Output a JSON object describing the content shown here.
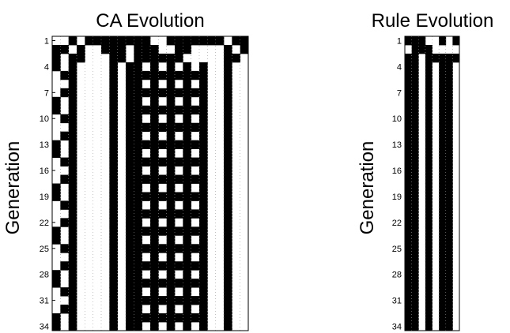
{
  "chart_data": [
    {
      "type": "heatmap",
      "title": "CA Evolution",
      "xlabel": "",
      "ylabel": "Generation",
      "yticks": [
        "1",
        "4",
        "7",
        "10",
        "13",
        "16",
        "19",
        "22",
        "25",
        "28",
        "31",
        "34"
      ],
      "grid": true,
      "colors": {
        "1": "#000000",
        "0": "#ffffff"
      },
      "rows": [
        [
          0,
          0,
          1,
          0,
          1,
          1,
          1,
          1,
          1,
          1,
          1,
          1,
          0,
          0,
          1,
          1,
          1,
          1,
          1,
          1,
          1,
          0,
          1,
          1
        ],
        [
          1,
          1,
          0,
          1,
          0,
          0,
          1,
          1,
          1,
          0,
          1,
          1,
          1,
          0,
          0,
          1,
          1,
          0,
          0,
          0,
          0,
          1,
          0,
          1
        ],
        [
          1,
          0,
          1,
          1,
          0,
          0,
          0,
          1,
          1,
          0,
          1,
          1,
          1,
          1,
          1,
          1,
          0,
          0,
          0,
          0,
          0,
          1,
          1,
          0
        ],
        [
          1,
          0,
          1,
          0,
          0,
          0,
          0,
          1,
          0,
          1,
          1,
          0,
          1,
          0,
          1,
          0,
          1,
          0,
          1,
          0,
          0,
          1,
          0,
          0
        ],
        [
          0,
          1,
          1,
          0,
          0,
          0,
          0,
          1,
          0,
          1,
          1,
          1,
          1,
          1,
          1,
          1,
          1,
          1,
          1,
          0,
          0,
          1,
          0,
          0
        ],
        [
          0,
          0,
          1,
          0,
          0,
          0,
          0,
          1,
          0,
          1,
          1,
          0,
          1,
          0,
          1,
          0,
          1,
          0,
          1,
          0,
          0,
          1,
          0,
          0
        ],
        [
          0,
          1,
          1,
          0,
          0,
          0,
          0,
          1,
          0,
          1,
          1,
          1,
          1,
          1,
          1,
          1,
          1,
          1,
          1,
          0,
          0,
          1,
          0,
          0
        ],
        [
          1,
          0,
          1,
          0,
          0,
          0,
          0,
          1,
          0,
          1,
          1,
          0,
          1,
          0,
          1,
          0,
          1,
          0,
          1,
          0,
          0,
          1,
          0,
          0
        ],
        [
          1,
          0,
          1,
          0,
          0,
          0,
          0,
          1,
          0,
          1,
          1,
          1,
          1,
          1,
          1,
          1,
          1,
          1,
          1,
          0,
          0,
          1,
          0,
          0
        ],
        [
          0,
          1,
          1,
          0,
          0,
          0,
          0,
          1,
          0,
          1,
          1,
          0,
          1,
          0,
          1,
          0,
          1,
          0,
          1,
          0,
          0,
          1,
          0,
          0
        ],
        [
          0,
          0,
          1,
          0,
          0,
          0,
          0,
          1,
          0,
          1,
          1,
          1,
          1,
          1,
          1,
          1,
          1,
          1,
          1,
          0,
          0,
          1,
          0,
          0
        ],
        [
          0,
          1,
          1,
          0,
          0,
          0,
          0,
          1,
          0,
          1,
          1,
          0,
          1,
          0,
          1,
          0,
          1,
          0,
          1,
          0,
          0,
          1,
          0,
          0
        ],
        [
          1,
          0,
          1,
          0,
          0,
          0,
          0,
          1,
          0,
          1,
          1,
          1,
          1,
          1,
          1,
          1,
          1,
          1,
          1,
          0,
          0,
          1,
          0,
          0
        ],
        [
          1,
          0,
          1,
          0,
          0,
          0,
          0,
          1,
          0,
          1,
          1,
          0,
          1,
          0,
          1,
          0,
          1,
          0,
          1,
          0,
          0,
          1,
          0,
          0
        ],
        [
          0,
          1,
          1,
          0,
          0,
          0,
          0,
          1,
          0,
          1,
          1,
          1,
          1,
          1,
          1,
          1,
          1,
          1,
          1,
          0,
          0,
          1,
          0,
          0
        ],
        [
          0,
          0,
          1,
          0,
          0,
          0,
          0,
          1,
          0,
          1,
          1,
          0,
          1,
          0,
          1,
          0,
          1,
          0,
          1,
          0,
          0,
          1,
          0,
          0
        ],
        [
          0,
          1,
          1,
          0,
          0,
          0,
          0,
          1,
          0,
          1,
          1,
          1,
          1,
          1,
          1,
          1,
          1,
          1,
          1,
          0,
          0,
          1,
          0,
          0
        ],
        [
          1,
          0,
          1,
          0,
          0,
          0,
          0,
          1,
          0,
          1,
          1,
          0,
          1,
          0,
          1,
          0,
          1,
          0,
          1,
          0,
          0,
          1,
          0,
          0
        ],
        [
          1,
          0,
          1,
          0,
          0,
          0,
          0,
          1,
          0,
          1,
          1,
          1,
          1,
          1,
          1,
          1,
          1,
          1,
          1,
          0,
          0,
          1,
          0,
          0
        ],
        [
          0,
          1,
          1,
          0,
          0,
          0,
          0,
          1,
          0,
          1,
          1,
          0,
          1,
          0,
          1,
          0,
          1,
          0,
          1,
          0,
          0,
          1,
          0,
          0
        ],
        [
          0,
          0,
          1,
          0,
          0,
          0,
          0,
          1,
          0,
          1,
          1,
          1,
          1,
          1,
          1,
          1,
          1,
          1,
          1,
          0,
          0,
          1,
          0,
          0
        ],
        [
          0,
          1,
          1,
          0,
          0,
          0,
          0,
          1,
          0,
          1,
          1,
          0,
          1,
          0,
          1,
          0,
          1,
          0,
          1,
          0,
          0,
          1,
          0,
          0
        ],
        [
          1,
          0,
          1,
          0,
          0,
          0,
          0,
          1,
          0,
          1,
          1,
          1,
          1,
          1,
          1,
          1,
          1,
          1,
          1,
          0,
          0,
          1,
          0,
          0
        ],
        [
          1,
          0,
          1,
          0,
          0,
          0,
          0,
          1,
          0,
          1,
          1,
          0,
          1,
          0,
          1,
          0,
          1,
          0,
          1,
          0,
          0,
          1,
          0,
          0
        ],
        [
          0,
          1,
          1,
          0,
          0,
          0,
          0,
          1,
          0,
          1,
          1,
          1,
          1,
          1,
          1,
          1,
          1,
          1,
          1,
          0,
          0,
          1,
          0,
          0
        ],
        [
          0,
          0,
          1,
          0,
          0,
          0,
          0,
          1,
          0,
          1,
          1,
          0,
          1,
          0,
          1,
          0,
          1,
          0,
          1,
          0,
          0,
          1,
          0,
          0
        ],
        [
          0,
          1,
          1,
          0,
          0,
          0,
          0,
          1,
          0,
          1,
          1,
          1,
          1,
          1,
          1,
          1,
          1,
          1,
          1,
          0,
          0,
          1,
          0,
          0
        ],
        [
          1,
          0,
          1,
          0,
          0,
          0,
          0,
          1,
          0,
          1,
          1,
          0,
          1,
          0,
          1,
          0,
          1,
          0,
          1,
          0,
          0,
          1,
          0,
          0
        ],
        [
          1,
          0,
          1,
          0,
          0,
          0,
          0,
          1,
          0,
          1,
          1,
          1,
          1,
          1,
          1,
          1,
          1,
          1,
          1,
          0,
          0,
          1,
          0,
          0
        ],
        [
          0,
          1,
          1,
          0,
          0,
          0,
          0,
          1,
          0,
          1,
          1,
          0,
          1,
          0,
          1,
          0,
          1,
          0,
          1,
          0,
          0,
          1,
          0,
          0
        ],
        [
          0,
          0,
          1,
          0,
          0,
          0,
          0,
          1,
          0,
          1,
          1,
          1,
          1,
          1,
          1,
          1,
          1,
          1,
          1,
          0,
          0,
          1,
          0,
          0
        ],
        [
          0,
          1,
          1,
          0,
          0,
          0,
          0,
          1,
          0,
          1,
          1,
          0,
          1,
          0,
          1,
          0,
          1,
          0,
          1,
          0,
          0,
          1,
          0,
          0
        ],
        [
          1,
          0,
          1,
          0,
          0,
          0,
          0,
          1,
          0,
          1,
          1,
          1,
          1,
          1,
          1,
          1,
          1,
          1,
          1,
          0,
          0,
          1,
          0,
          0
        ],
        [
          1,
          0,
          1,
          0,
          0,
          0,
          0,
          1,
          0,
          1,
          1,
          0,
          1,
          0,
          1,
          0,
          1,
          0,
          1,
          0,
          0,
          1,
          0,
          0
        ]
      ]
    },
    {
      "type": "heatmap",
      "title": "Rule Evolution",
      "xlabel": "",
      "ylabel": "Generation",
      "yticks": [
        "1",
        "4",
        "7",
        "10",
        "13",
        "16",
        "19",
        "22",
        "25",
        "28",
        "31",
        "34"
      ],
      "grid": true,
      "colors": {
        "1": "#000000",
        "0": "#ffffff"
      },
      "rows": [
        [
          1,
          1,
          1,
          0,
          0,
          1,
          0,
          1
        ],
        [
          0,
          1,
          1,
          1,
          0,
          0,
          0,
          0
        ],
        [
          1,
          1,
          0,
          1,
          1,
          1,
          1,
          1
        ],
        [
          1,
          1,
          0,
          1,
          0,
          1,
          1,
          0
        ],
        [
          1,
          1,
          0,
          1,
          0,
          1,
          1,
          0
        ],
        [
          1,
          1,
          0,
          1,
          0,
          1,
          1,
          0
        ],
        [
          1,
          1,
          0,
          1,
          0,
          1,
          1,
          0
        ],
        [
          1,
          1,
          0,
          1,
          0,
          1,
          1,
          0
        ],
        [
          1,
          1,
          0,
          1,
          0,
          1,
          1,
          0
        ],
        [
          1,
          1,
          0,
          1,
          0,
          1,
          1,
          0
        ],
        [
          1,
          1,
          0,
          1,
          0,
          1,
          1,
          0
        ],
        [
          1,
          1,
          0,
          1,
          0,
          1,
          1,
          0
        ],
        [
          1,
          1,
          0,
          1,
          0,
          1,
          1,
          0
        ],
        [
          1,
          1,
          0,
          1,
          0,
          1,
          1,
          0
        ],
        [
          1,
          1,
          0,
          1,
          0,
          1,
          1,
          0
        ],
        [
          1,
          1,
          0,
          1,
          0,
          1,
          1,
          0
        ],
        [
          1,
          1,
          0,
          1,
          0,
          1,
          1,
          0
        ],
        [
          1,
          1,
          0,
          1,
          0,
          1,
          1,
          0
        ],
        [
          1,
          1,
          0,
          1,
          0,
          1,
          1,
          0
        ],
        [
          1,
          1,
          0,
          1,
          0,
          1,
          1,
          0
        ],
        [
          1,
          1,
          0,
          1,
          0,
          1,
          1,
          0
        ],
        [
          1,
          1,
          0,
          1,
          0,
          1,
          1,
          0
        ],
        [
          1,
          1,
          0,
          1,
          0,
          1,
          1,
          0
        ],
        [
          1,
          1,
          0,
          1,
          0,
          1,
          1,
          0
        ],
        [
          1,
          1,
          0,
          1,
          0,
          1,
          1,
          0
        ],
        [
          1,
          1,
          0,
          1,
          0,
          1,
          1,
          0
        ],
        [
          1,
          1,
          0,
          1,
          0,
          1,
          1,
          0
        ],
        [
          1,
          1,
          0,
          1,
          0,
          1,
          1,
          0
        ],
        [
          1,
          1,
          0,
          1,
          0,
          1,
          1,
          0
        ],
        [
          1,
          1,
          0,
          1,
          0,
          1,
          1,
          0
        ],
        [
          1,
          1,
          0,
          1,
          0,
          1,
          1,
          0
        ],
        [
          1,
          1,
          0,
          1,
          0,
          1,
          1,
          0
        ],
        [
          1,
          1,
          0,
          1,
          0,
          1,
          1,
          0
        ],
        [
          1,
          1,
          0,
          1,
          0,
          1,
          1,
          0
        ]
      ]
    }
  ]
}
